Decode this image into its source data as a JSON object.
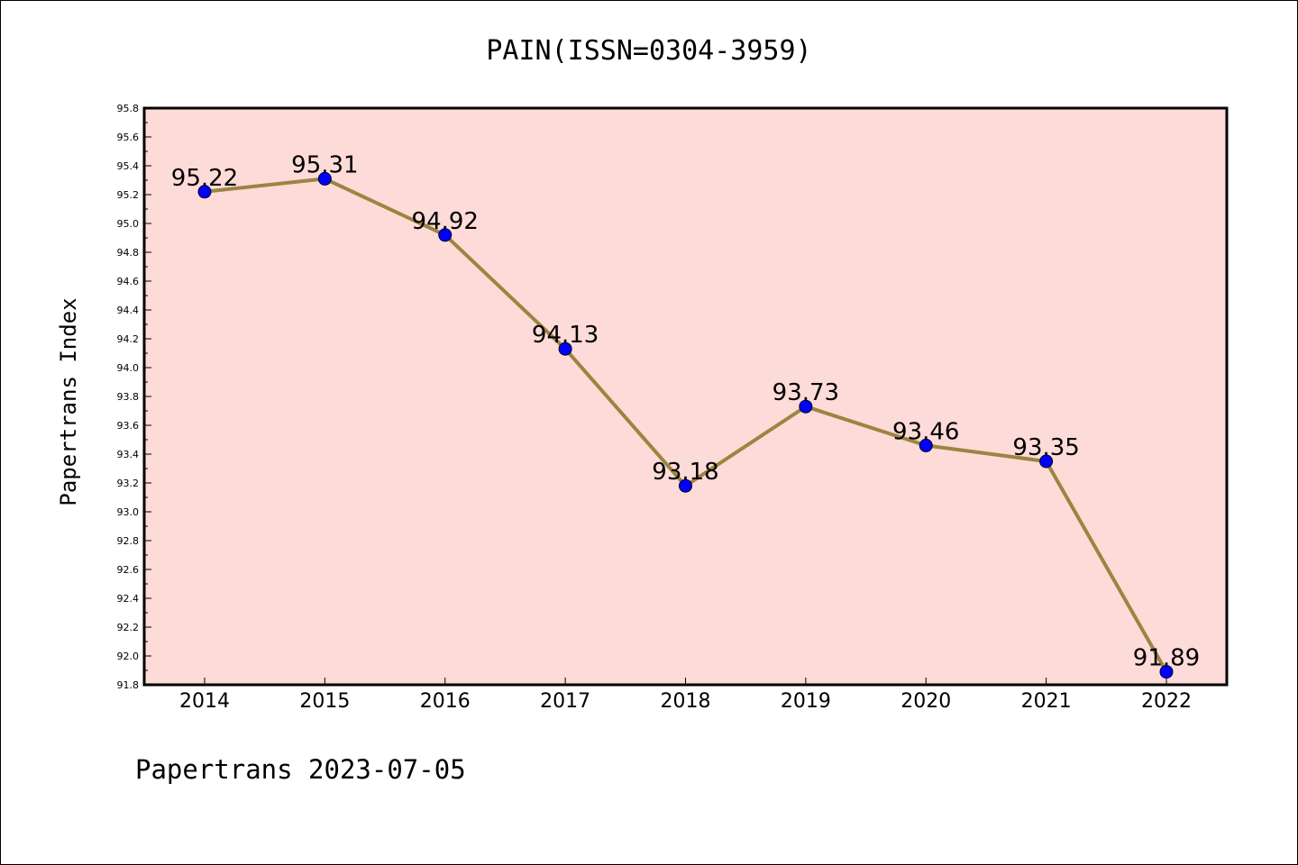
{
  "chart_data": {
    "type": "line",
    "title": "PAIN(ISSN=0304-3959)",
    "ylabel": "Papertrans Index",
    "xlabel": "",
    "x": [
      "2014",
      "2015",
      "2016",
      "2017",
      "2018",
      "2019",
      "2020",
      "2021",
      "2022"
    ],
    "series": [
      {
        "values": [
          95.22,
          95.31,
          94.92,
          94.13,
          93.18,
          93.73,
          93.46,
          93.35,
          91.89
        ],
        "data_labels": [
          "95.22",
          "95.31",
          "94.92",
          "94.13",
          "93.18",
          "93.73",
          "93.46",
          "93.35",
          "91.89"
        ]
      }
    ],
    "ylim": [
      91.8,
      95.8
    ],
    "yticks": [
      "91.8",
      "92.0",
      "92.2",
      "92.4",
      "92.6",
      "92.8",
      "93.0",
      "93.2",
      "93.4",
      "93.6",
      "93.8",
      "94.0",
      "94.2",
      "94.4",
      "94.6",
      "94.8",
      "95.0",
      "95.2",
      "95.4",
      "95.6",
      "95.8"
    ],
    "grid": false,
    "legend": "none",
    "colors": {
      "plot_background": "#fddbd8",
      "line": "#9b8540",
      "marker": "#0000ff",
      "axis": "#000000"
    }
  },
  "footer": "Papertrans 2023-07-05"
}
